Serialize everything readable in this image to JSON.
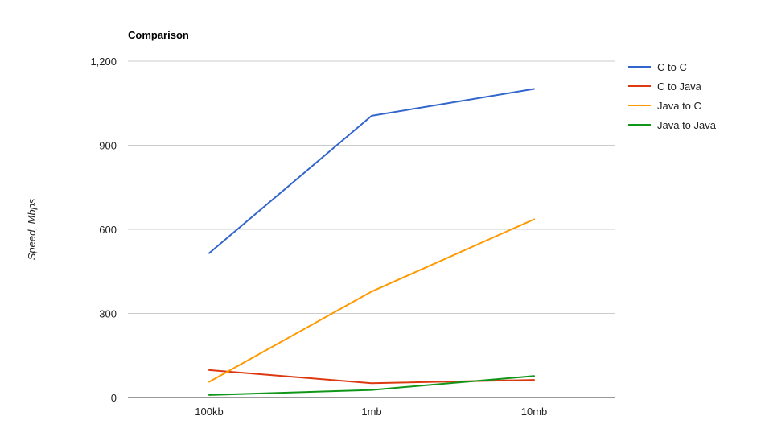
{
  "chart_data": {
    "type": "line",
    "title": "Comparison",
    "xlabel": "",
    "ylabel": "Speed, Mbps",
    "categories": [
      "100kb",
      "1mb",
      "10mb"
    ],
    "ylim": [
      0,
      1200
    ],
    "yticks": [
      0,
      300,
      600,
      900,
      1200
    ],
    "ytick_labels": [
      "0",
      "300",
      "600",
      "900",
      "1,200"
    ],
    "grid": true,
    "legend_position": "right",
    "series": [
      {
        "name": "C to C",
        "color": "#3366cc",
        "values": [
          515,
          1005,
          1101
        ]
      },
      {
        "name": "C to Java",
        "color": "#dc3912",
        "values": [
          98,
          51,
          63
        ]
      },
      {
        "name": "Java to C",
        "color": "#ff9900",
        "values": [
          56,
          378,
          636
        ]
      },
      {
        "name": "Java to Java",
        "color": "#109618",
        "values": [
          9,
          27,
          77
        ]
      }
    ]
  }
}
